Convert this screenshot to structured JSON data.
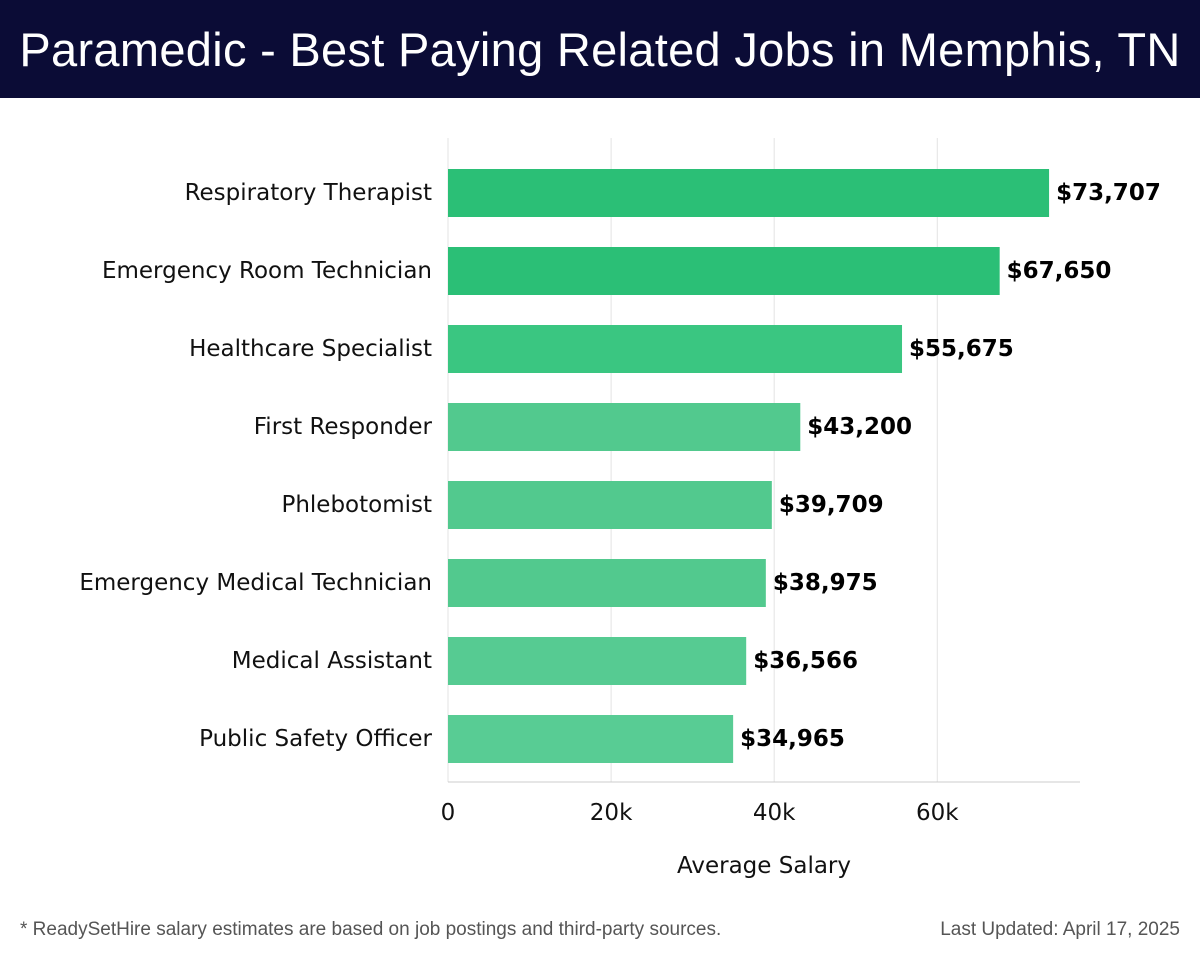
{
  "header": {
    "title": "Paramedic - Best Paying Related Jobs in Memphis, TN"
  },
  "chart_data": {
    "type": "bar",
    "orientation": "horizontal",
    "categories": [
      "Respiratory Therapist",
      "Emergency Room Technician",
      "Healthcare Specialist",
      "First Responder",
      "Phlebotomist",
      "Emergency Medical Technician",
      "Medical Assistant",
      "Public Safety Officer"
    ],
    "values": [
      73707,
      67650,
      55675,
      43200,
      39709,
      38975,
      36566,
      34965
    ],
    "value_labels": [
      "$73,707",
      "$67,650",
      "$55,675",
      "$43,200",
      "$39,709",
      "$38,975",
      "$36,566",
      "$34,965"
    ],
    "xlabel": "Average Salary",
    "ylabel": "",
    "xlim": [
      0,
      77500
    ],
    "xticks": [
      0,
      20000,
      40000,
      60000
    ],
    "xtick_labels": [
      "0",
      "20k",
      "40k",
      "60k"
    ],
    "grid": true,
    "colors": [
      "#2bbf76",
      "#2bbf76",
      "#3ac681",
      "#52c98e",
      "#52c98e",
      "#52c98e",
      "#56cb92",
      "#58cc94"
    ]
  },
  "footer": {
    "note": "* ReadySetHire salary estimates are based on job postings and third-party sources.",
    "updated": "Last Updated: April 17, 2025"
  }
}
